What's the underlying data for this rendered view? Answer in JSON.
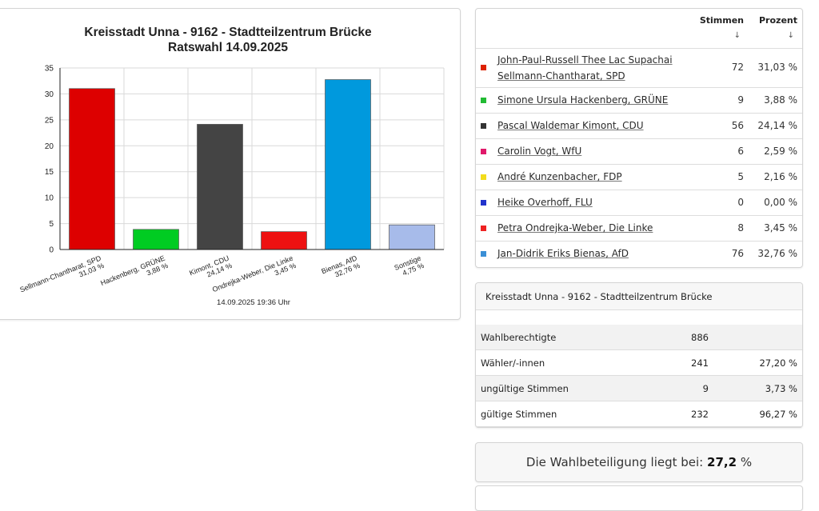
{
  "chart_data": {
    "type": "bar",
    "title": "Kreisstadt Unna - 9162 - Stadtteilzentrum Brücke",
    "subtitle": "Ratswahl 14.09.2025",
    "categories": [
      [
        "Sellmann-Chantharat, SPD",
        "31,03 %"
      ],
      [
        "Hackenberg, GRÜNE",
        "3,88 %"
      ],
      [
        "Kimont, CDU",
        "24,14 %"
      ],
      [
        "Ondrejka-Weber, Die Linke",
        "3,45 %"
      ],
      [
        "Bienas, AfD",
        "32,76 %"
      ],
      [
        "Sonstige",
        "4,75 %"
      ]
    ],
    "values": [
      31.03,
      3.88,
      24.14,
      3.45,
      32.76,
      4.75
    ],
    "colors": [
      "#dd0000",
      "#00cc22",
      "#444444",
      "#ee1111",
      "#0099dd",
      "#a7bbea"
    ],
    "ylim": [
      0,
      35
    ],
    "yticks": [
      0,
      5,
      10,
      15,
      20,
      25,
      30,
      35
    ],
    "grid": true,
    "footer": "14.09.2025 19:36 Uhr"
  },
  "results_table": {
    "col_votes": "Stimmen",
    "col_percent": "Prozent",
    "sort_arrow": "↓",
    "rows": [
      {
        "line1": "John-Paul-Russell Thee Lac Supachai",
        "line2": "Sellmann-Chantharat, SPD",
        "votes": "72",
        "percent": "31,03 %",
        "color": "#dd2200"
      },
      {
        "line1": "Simone Ursula Hackenberg, GRÜNE",
        "line2": "",
        "votes": "9",
        "percent": "3,88 %",
        "color": "#22bb33"
      },
      {
        "line1": "Pascal Waldemar Kimont, CDU",
        "line2": "",
        "votes": "56",
        "percent": "24,14 %",
        "color": "#333333"
      },
      {
        "line1": "Carolin Vogt, WfU",
        "line2": "",
        "votes": "6",
        "percent": "2,59 %",
        "color": "#e0186a"
      },
      {
        "line1": "André Kunzenbacher, FDP",
        "line2": "",
        "votes": "5",
        "percent": "2,16 %",
        "color": "#f2dc1c"
      },
      {
        "line1": "Heike Overhoff, FLU",
        "line2": "",
        "votes": "0",
        "percent": "0,00 %",
        "color": "#2233cc"
      },
      {
        "line1": "Petra Ondrejka-Weber, Die Linke",
        "line2": "",
        "votes": "8",
        "percent": "3,45 %",
        "color": "#ee2222"
      },
      {
        "line1": "Jan-Didrik Eriks Bienas, AfD",
        "line2": "",
        "votes": "76",
        "percent": "32,76 %",
        "color": "#3b8fd6"
      }
    ]
  },
  "stats": {
    "header": "Kreisstadt Unna - 9162 - Stadtteilzentrum Brücke",
    "rows": [
      {
        "label": "Wahlberechtigte",
        "value": "886",
        "percent": ""
      },
      {
        "label": "Wähler/-innen",
        "value": "241",
        "percent": "27,20 %"
      },
      {
        "label": "ungültige Stimmen",
        "value": "9",
        "percent": "3,73 %"
      },
      {
        "label": "gültige Stimmen",
        "value": "232",
        "percent": "96,27 %"
      }
    ]
  },
  "turnout": {
    "text": "Die Wahlbeteiligung liegt bei:",
    "value": "27,2",
    "unit": "%"
  }
}
